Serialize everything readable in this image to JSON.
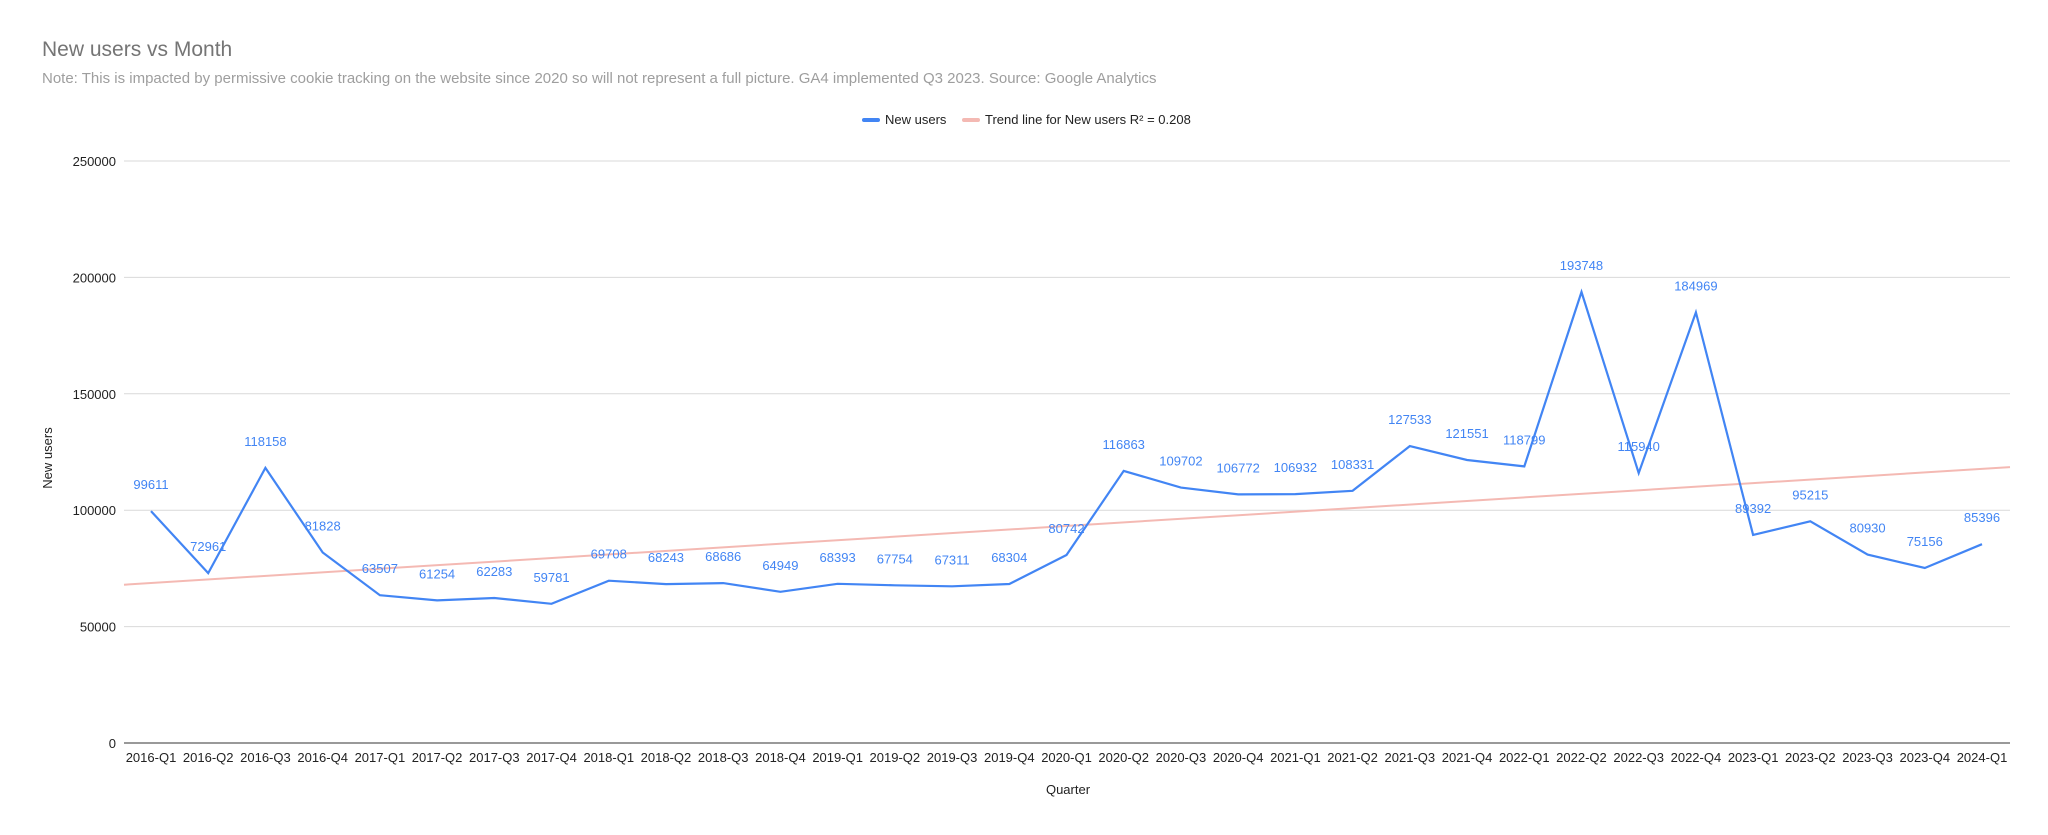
{
  "chart_data": {
    "type": "line",
    "title": "New users vs Month",
    "subtitle": "Note: This is impacted by permissive cookie tracking on the website since 2020 so will not represent a full picture. GA4 implemented Q3 2023. Source: Google Analytics",
    "xlabel": "Quarter",
    "ylabel": "New users",
    "ylim": [
      0,
      250000
    ],
    "yticks": [
      "0",
      "50000",
      "100000",
      "150000",
      "200000",
      "250000"
    ],
    "grid": true,
    "legend_position": "top",
    "categories": [
      "2016-Q1",
      "2016-Q2",
      "2016-Q3",
      "2016-Q4",
      "2017-Q1",
      "2017-Q2",
      "2017-Q3",
      "2017-Q4",
      "2018-Q1",
      "2018-Q2",
      "2018-Q3",
      "2018-Q4",
      "2019-Q1",
      "2019-Q2",
      "2019-Q3",
      "2019-Q4",
      "2020-Q1",
      "2020-Q2",
      "2020-Q3",
      "2020-Q4",
      "2021-Q1",
      "2021-Q2",
      "2021-Q3",
      "2021-Q4",
      "2022-Q1",
      "2022-Q2",
      "2022-Q3",
      "2022-Q4",
      "2023-Q1",
      "2023-Q2",
      "2023-Q3",
      "2023-Q4",
      "2024-Q1"
    ],
    "series": [
      {
        "name": "New users",
        "color": "#4285f4",
        "values": [
          99611,
          72961,
          118158,
          81828,
          63507,
          61254,
          62283,
          59781,
          69708,
          68243,
          68686,
          64949,
          68393,
          67754,
          67311,
          68304,
          80742,
          116863,
          109702,
          106772,
          106932,
          108331,
          127533,
          121551,
          118799,
          193748,
          115940,
          184969,
          89392,
          95215,
          80930,
          75156,
          85396
        ]
      }
    ],
    "trendline": {
      "name": "Trend line for New users R² = 0.208",
      "color": "#f4b9b3",
      "start_value": 68000,
      "end_value": 118500
    }
  }
}
